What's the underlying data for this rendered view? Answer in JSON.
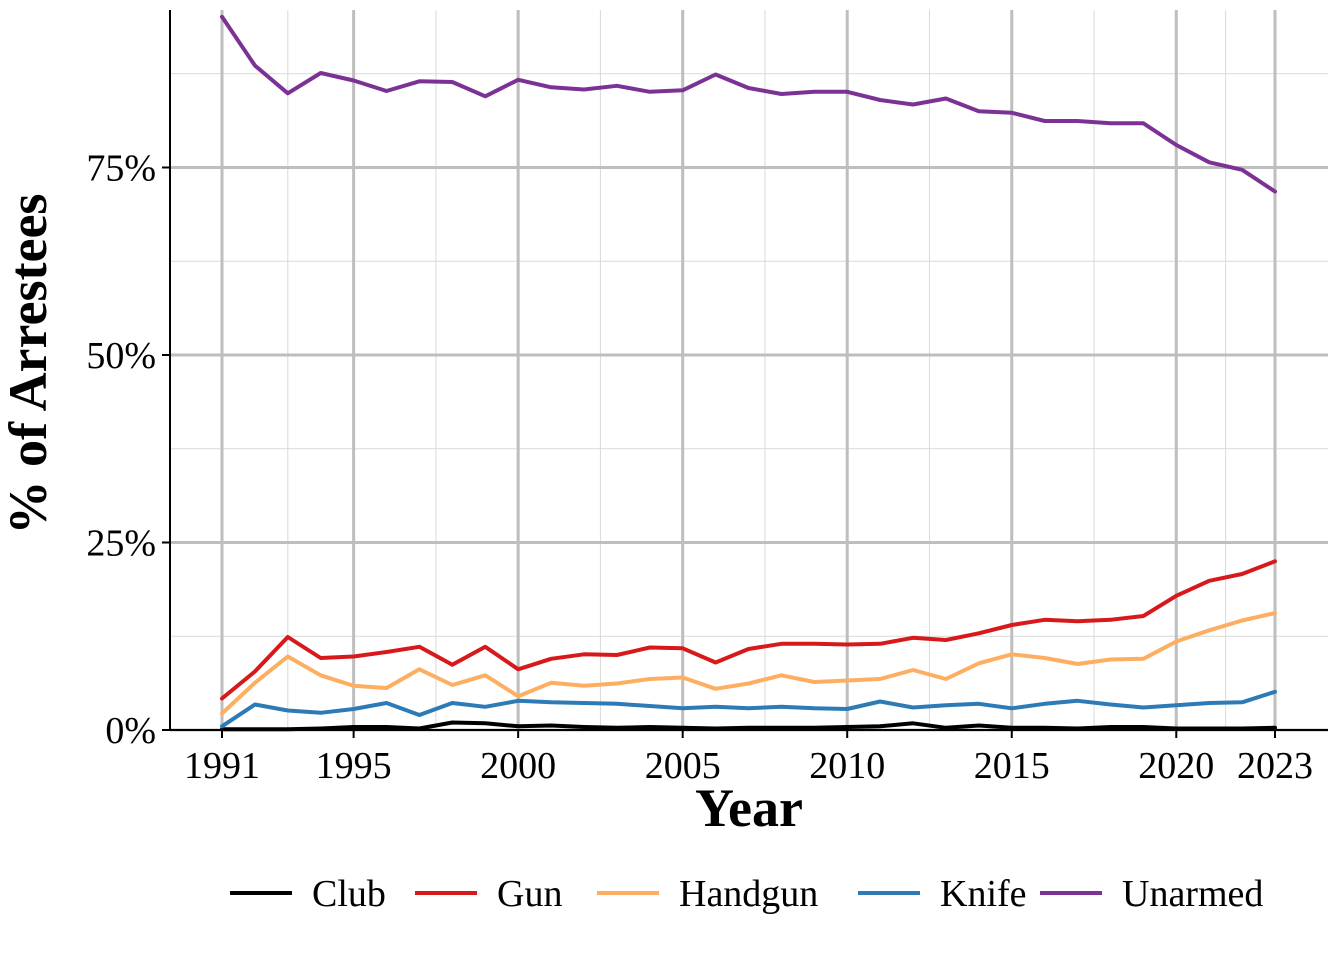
{
  "chart_data": {
    "type": "line",
    "xlabel": "Year",
    "ylabel": "% of Arrestees",
    "x_ticks": [
      1991,
      1995,
      2000,
      2005,
      2010,
      2015,
      2020,
      2023
    ],
    "y_ticks": [
      0,
      25,
      50,
      75
    ],
    "y_tick_labels": [
      "0%",
      "25%",
      "50%",
      "75%"
    ],
    "xlim": [
      1991,
      2023
    ],
    "ylim": [
      0,
      95
    ],
    "grid": true,
    "legend_position": "bottom",
    "x": [
      1991,
      1992,
      1993,
      1994,
      1995,
      1996,
      1997,
      1998,
      1999,
      2000,
      2001,
      2002,
      2003,
      2004,
      2005,
      2006,
      2007,
      2008,
      2009,
      2010,
      2011,
      2012,
      2013,
      2014,
      2015,
      2016,
      2017,
      2018,
      2019,
      2020,
      2021,
      2022,
      2023
    ],
    "series": [
      {
        "name": "Club",
        "color": "#000000",
        "values": [
          0.1,
          0.1,
          0.1,
          0.2,
          0.4,
          0.4,
          0.2,
          1.0,
          0.9,
          0.5,
          0.6,
          0.4,
          0.3,
          0.4,
          0.3,
          0.2,
          0.3,
          0.3,
          0.3,
          0.4,
          0.5,
          0.9,
          0.3,
          0.6,
          0.3,
          0.3,
          0.2,
          0.4,
          0.4,
          0.2,
          0.2,
          0.2,
          0.3
        ]
      },
      {
        "name": "Gun",
        "color": "#d7191c",
        "values": [
          4.2,
          7.8,
          12.4,
          9.6,
          9.8,
          10.4,
          11.1,
          8.7,
          11.1,
          8.1,
          9.5,
          10.1,
          10.0,
          11.0,
          10.9,
          9.0,
          10.8,
          11.5,
          11.5,
          11.4,
          11.5,
          12.3,
          12.0,
          12.9,
          14.0,
          14.7,
          14.5,
          14.7,
          15.2,
          17.9,
          19.9,
          20.8,
          22.5
        ]
      },
      {
        "name": "Handgun",
        "color": "#fdae61",
        "values": [
          2.2,
          6.3,
          9.8,
          7.3,
          5.9,
          5.6,
          8.1,
          6.0,
          7.3,
          4.5,
          6.3,
          5.9,
          6.2,
          6.8,
          7.0,
          5.5,
          6.2,
          7.3,
          6.4,
          6.6,
          6.8,
          8.0,
          6.8,
          8.9,
          10.1,
          9.6,
          8.8,
          9.4,
          9.5,
          11.8,
          13.3,
          14.6,
          15.6
        ]
      },
      {
        "name": "Knife",
        "color": "#2c7bb6",
        "values": [
          0.5,
          3.4,
          2.6,
          2.3,
          2.8,
          3.6,
          2.0,
          3.6,
          3.1,
          3.9,
          3.7,
          3.6,
          3.5,
          3.2,
          2.9,
          3.1,
          2.9,
          3.1,
          2.9,
          2.8,
          3.8,
          3.0,
          3.3,
          3.5,
          2.9,
          3.5,
          3.9,
          3.4,
          3.0,
          3.3,
          3.6,
          3.7,
          5.1
        ]
      },
      {
        "name": "Unarmed",
        "color": "#7b3294",
        "values": [
          95.1,
          88.6,
          84.9,
          87.6,
          86.6,
          85.2,
          86.5,
          86.4,
          84.5,
          86.7,
          85.7,
          85.4,
          85.9,
          85.1,
          85.3,
          87.4,
          85.6,
          84.8,
          85.1,
          85.1,
          84.0,
          83.4,
          84.2,
          82.5,
          82.3,
          81.2,
          81.2,
          80.9,
          80.9,
          78.0,
          75.7,
          74.7,
          71.8
        ]
      }
    ],
    "legend": [
      "Club",
      "Gun",
      "Handgun",
      "Knife",
      "Unarmed"
    ]
  },
  "colors": {
    "grid_major": "#bebebe",
    "grid_minor": "#d9d9d9",
    "axis": "#000000"
  }
}
